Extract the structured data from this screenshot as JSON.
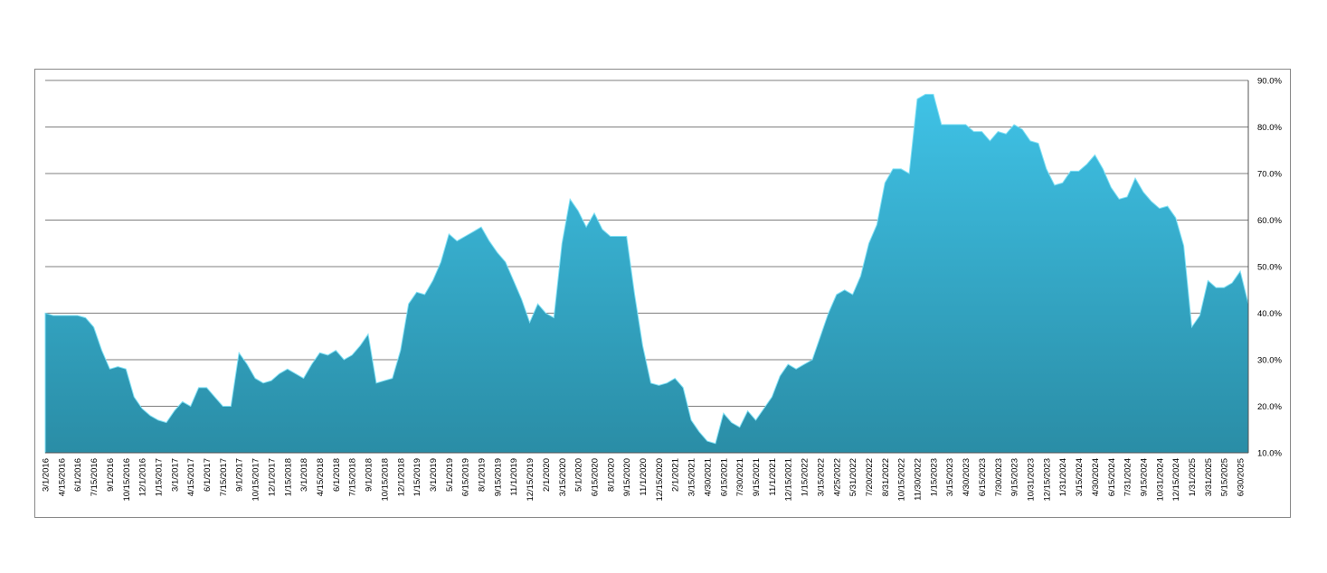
{
  "chart_data": {
    "type": "area",
    "color_top": "#3fc2e6",
    "color_bottom": "#2a8da6",
    "grid": true,
    "y_axis_side": "right",
    "ylim": [
      10,
      90
    ],
    "yticks": [
      {
        "value": 10,
        "label": "10.0%"
      },
      {
        "value": 20,
        "label": "20.0%"
      },
      {
        "value": 30,
        "label": "30.0%"
      },
      {
        "value": 40,
        "label": "40.0%"
      },
      {
        "value": 50,
        "label": "50.0%"
      },
      {
        "value": 60,
        "label": "60.0%"
      },
      {
        "value": 70,
        "label": "70.0%"
      },
      {
        "value": 80,
        "label": "80.0%"
      },
      {
        "value": 90,
        "label": "90.0%"
      }
    ],
    "categories": [
      "3/1/2016",
      null,
      "4/15/2016",
      null,
      "6/1/2016",
      null,
      "7/15/2016",
      null,
      "9/1/2016",
      null,
      "10/15/2016",
      null,
      "12/1/2016",
      null,
      "1/15/2017",
      null,
      "3/1/2017",
      null,
      "4/15/2017",
      null,
      "6/1/2017",
      null,
      "7/15/2017",
      null,
      "9/1/2017",
      null,
      "10/15/2017",
      null,
      "12/1/2017",
      null,
      "1/15/2018",
      null,
      "3/1/2018",
      null,
      "4/15/2018",
      null,
      "6/1/2018",
      null,
      "7/15/2018",
      null,
      "9/1/2018",
      null,
      "10/15/2018",
      null,
      "12/1/2018",
      null,
      "1/15/2019",
      null,
      "3/1/2019",
      null,
      "5/1/2019",
      null,
      "6/15/2019",
      null,
      "8/1/2019",
      null,
      "9/15/2019",
      null,
      "11/1/2019",
      null,
      "12/15/2019",
      null,
      "2/1/2020",
      null,
      "3/15/2020",
      null,
      "5/1/2020",
      null,
      "6/15/2020",
      null,
      "8/1/2020",
      null,
      "9/15/2020",
      null,
      "11/1/2020",
      null,
      "12/15/2020",
      null,
      "2/1/2021",
      null,
      "3/15/2021",
      null,
      "4/30/2021",
      null,
      "6/15/2021",
      null,
      "7/30/2021",
      null,
      "9/15/2021",
      null,
      "11/1/2021",
      null,
      "12/15/2021",
      null,
      "1/15/2022",
      null,
      "3/15/2022",
      null,
      "4/25/2022",
      null,
      "5/31/2022",
      null,
      "7/20/2022",
      null,
      "8/31/2022",
      null,
      "10/15/2022",
      null,
      "11/30/2022",
      null,
      "1/15/2023",
      null,
      "3/15/2023",
      null,
      "4/30/2023",
      null,
      "6/15/2023",
      null,
      "7/30/2023",
      null,
      "9/15/2023",
      null,
      "10/31/2023",
      null,
      "12/15/2023",
      null,
      "1/31/2024",
      null,
      "3/15/2024",
      null,
      "4/30/2024",
      null,
      "6/15/2024",
      null,
      "7/31/2024",
      null,
      "9/15/2024",
      null,
      "10/31/2024",
      null,
      "12/15/2024",
      null,
      "1/31/2025",
      null,
      "3/31/2025",
      null,
      "5/15/2025",
      null,
      "6/30/2025",
      null
    ],
    "values": [
      40,
      39.5,
      39.5,
      39.5,
      39.5,
      39,
      37,
      32,
      28,
      28.5,
      28,
      22,
      19.5,
      18,
      17,
      16.5,
      19,
      21,
      20,
      24,
      24,
      22,
      20,
      20,
      31.5,
      29,
      26,
      25,
      25.5,
      27,
      28,
      27,
      26,
      29,
      31.5,
      31,
      32,
      30,
      31,
      33,
      35.5,
      25,
      25.5,
      26,
      32,
      42,
      44.5,
      44,
      47,
      51,
      57,
      55.5,
      56.5,
      57.5,
      58.5,
      55.5,
      53,
      51,
      47,
      43,
      38,
      42,
      40,
      39,
      55,
      64.5,
      62,
      58.5,
      61.5,
      58,
      56.5,
      56.5,
      56.5,
      44,
      33,
      25,
      24.5,
      25,
      26,
      24,
      17,
      14.5,
      12.5,
      12,
      18.5,
      16.5,
      15.5,
      19,
      17,
      19.5,
      22,
      26.5,
      29,
      28,
      29,
      30,
      35,
      40,
      44,
      45,
      44,
      48,
      55,
      59,
      68,
      71,
      71,
      70,
      86,
      87,
      87,
      80.5,
      80.5,
      80.5,
      80.5,
      79,
      79,
      77,
      79,
      78.5,
      80.5,
      79.5,
      77,
      76.5,
      71,
      67.5,
      68,
      70.5,
      70.5,
      72,
      74,
      71,
      67,
      64.5,
      65,
      69,
      66,
      64,
      62.5,
      63,
      60.5,
      54.5,
      37,
      39.5,
      47,
      45.5,
      45.5,
      46.5,
      49,
      42
    ]
  }
}
